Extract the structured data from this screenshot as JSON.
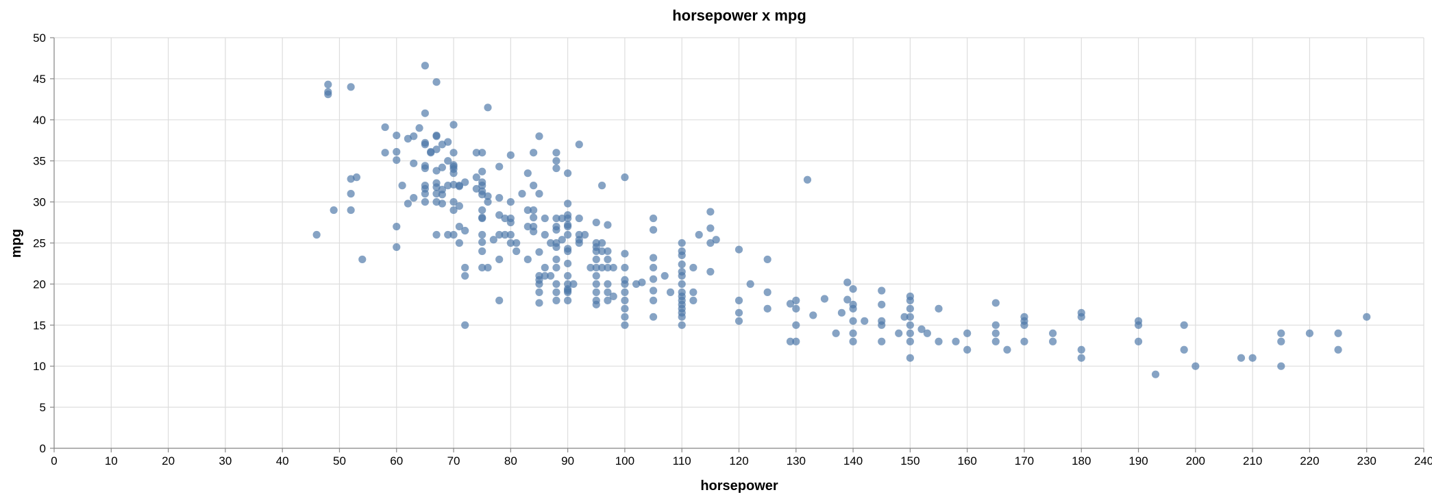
{
  "chart_data": {
    "type": "scatter",
    "title": "horsepower x mpg",
    "xlabel": "horsepower",
    "ylabel": "mpg",
    "xlim": [
      0,
      240
    ],
    "ylim": [
      0,
      50
    ],
    "xticks": [
      0,
      10,
      20,
      30,
      40,
      50,
      60,
      70,
      80,
      90,
      100,
      110,
      120,
      130,
      140,
      150,
      160,
      170,
      180,
      190,
      200,
      210,
      220,
      230,
      240
    ],
    "yticks": [
      0,
      5,
      10,
      15,
      20,
      25,
      30,
      35,
      40,
      45,
      50
    ],
    "grid": true,
    "point_color": "#4c78a8",
    "points": [
      [
        46,
        26
      ],
      [
        48,
        43.1
      ],
      [
        48,
        43.4
      ],
      [
        48,
        44.3
      ],
      [
        49,
        29
      ],
      [
        52,
        44
      ],
      [
        52,
        29
      ],
      [
        52,
        31
      ],
      [
        52,
        32.8
      ],
      [
        53,
        33
      ],
      [
        54,
        23
      ],
      [
        58,
        36
      ],
      [
        58,
        39.1
      ],
      [
        60,
        24.5
      ],
      [
        60,
        27
      ],
      [
        60,
        35.1
      ],
      [
        60,
        36.1
      ],
      [
        60,
        38.1
      ],
      [
        61,
        32
      ],
      [
        62,
        29.8
      ],
      [
        62,
        37.7
      ],
      [
        63,
        30.5
      ],
      [
        63,
        34.7
      ],
      [
        63,
        38
      ],
      [
        64,
        39
      ],
      [
        65,
        46.6
      ],
      [
        65,
        40.8
      ],
      [
        65,
        37.2
      ],
      [
        65,
        37
      ],
      [
        65,
        34.4
      ],
      [
        65,
        34.1
      ],
      [
        65,
        32
      ],
      [
        65,
        31.6
      ],
      [
        65,
        31
      ],
      [
        65,
        30
      ],
      [
        66,
        36.1
      ],
      [
        66,
        36
      ],
      [
        67,
        44.6
      ],
      [
        67,
        38.1
      ],
      [
        67,
        38
      ],
      [
        67,
        36.4
      ],
      [
        67,
        33.8
      ],
      [
        67,
        32.3
      ],
      [
        67,
        31.8
      ],
      [
        67,
        31
      ],
      [
        67,
        30
      ],
      [
        67,
        26
      ],
      [
        68,
        37
      ],
      [
        68,
        34.2
      ],
      [
        68,
        31.5
      ],
      [
        68,
        30.9
      ],
      [
        68,
        29.8
      ],
      [
        69,
        37.3
      ],
      [
        69,
        35
      ],
      [
        69,
        32
      ],
      [
        69,
        26
      ],
      [
        70,
        39.4
      ],
      [
        70,
        36
      ],
      [
        70,
        34.5
      ],
      [
        70,
        34.3
      ],
      [
        70,
        34
      ],
      [
        70,
        33.5
      ],
      [
        70,
        32.1
      ],
      [
        70,
        30
      ],
      [
        70,
        29
      ],
      [
        70,
        26
      ],
      [
        71,
        32
      ],
      [
        71,
        31.9
      ],
      [
        71,
        29.5
      ],
      [
        71,
        27
      ],
      [
        71,
        25
      ],
      [
        72,
        32.4
      ],
      [
        72,
        26.5
      ],
      [
        72,
        22
      ],
      [
        72,
        21
      ],
      [
        72,
        15
      ],
      [
        74,
        36
      ],
      [
        74,
        33
      ],
      [
        74,
        31.6
      ],
      [
        75,
        36
      ],
      [
        75,
        33.7
      ],
      [
        75,
        32.4
      ],
      [
        75,
        32
      ],
      [
        75,
        31.3
      ],
      [
        75,
        30.9
      ],
      [
        75,
        29
      ],
      [
        75,
        28
      ],
      [
        75,
        28.1
      ],
      [
        75,
        26
      ],
      [
        75,
        25.1
      ],
      [
        75,
        24
      ],
      [
        75,
        22
      ],
      [
        76,
        30.7
      ],
      [
        76,
        30
      ],
      [
        76,
        41.5
      ],
      [
        76,
        22
      ],
      [
        77,
        25.4
      ],
      [
        78,
        18
      ],
      [
        78,
        23
      ],
      [
        78,
        26
      ],
      [
        78,
        28.4
      ],
      [
        78,
        30.5
      ],
      [
        78,
        34.3
      ],
      [
        79,
        26
      ],
      [
        79,
        28
      ],
      [
        80,
        35.7
      ],
      [
        80,
        27.5
      ],
      [
        80,
        28
      ],
      [
        80,
        26
      ],
      [
        80,
        25
      ],
      [
        80,
        30
      ],
      [
        81,
        24
      ],
      [
        81,
        25
      ],
      [
        82,
        31
      ],
      [
        83,
        33.5
      ],
      [
        83,
        29
      ],
      [
        83,
        27
      ],
      [
        83,
        23
      ],
      [
        84,
        36
      ],
      [
        84,
        32
      ],
      [
        84,
        28.1
      ],
      [
        84,
        26.4
      ],
      [
        84,
        27
      ],
      [
        84,
        29
      ],
      [
        85,
        38
      ],
      [
        85,
        31
      ],
      [
        85,
        23.9
      ],
      [
        85,
        21
      ],
      [
        85,
        20.5
      ],
      [
        85,
        20
      ],
      [
        85,
        19
      ],
      [
        85,
        17.7
      ],
      [
        86,
        26
      ],
      [
        86,
        28
      ],
      [
        86,
        22
      ],
      [
        86,
        21
      ],
      [
        87,
        21
      ],
      [
        87,
        25
      ],
      [
        88,
        36
      ],
      [
        88,
        35
      ],
      [
        88,
        34.1
      ],
      [
        88,
        28
      ],
      [
        88,
        27
      ],
      [
        88,
        26.6
      ],
      [
        88,
        25
      ],
      [
        88,
        24.5
      ],
      [
        88,
        23
      ],
      [
        88,
        22
      ],
      [
        88,
        20
      ],
      [
        88,
        19
      ],
      [
        88,
        18
      ],
      [
        89,
        25.4
      ],
      [
        89,
        28
      ],
      [
        90,
        33.5
      ],
      [
        90,
        29.8
      ],
      [
        90,
        28.4
      ],
      [
        90,
        28
      ],
      [
        90,
        27.2
      ],
      [
        90,
        27
      ],
      [
        90,
        26
      ],
      [
        90,
        24.3
      ],
      [
        90,
        24
      ],
      [
        90,
        22.5
      ],
      [
        90,
        21
      ],
      [
        90,
        20
      ],
      [
        90,
        19.4
      ],
      [
        90,
        19.2
      ],
      [
        90,
        19
      ],
      [
        90,
        18
      ],
      [
        91,
        20
      ],
      [
        92,
        37
      ],
      [
        92,
        28
      ],
      [
        92,
        26
      ],
      [
        92,
        25.4
      ],
      [
        92,
        25
      ],
      [
        93,
        26
      ],
      [
        94,
        22
      ],
      [
        95,
        27.5
      ],
      [
        95,
        25
      ],
      [
        95,
        24.5
      ],
      [
        95,
        24
      ],
      [
        95,
        23
      ],
      [
        95,
        22
      ],
      [
        95,
        21
      ],
      [
        95,
        20
      ],
      [
        95,
        19
      ],
      [
        95,
        18
      ],
      [
        95,
        17.5
      ],
      [
        96,
        32
      ],
      [
        96,
        25
      ],
      [
        96,
        24
      ],
      [
        96,
        22
      ],
      [
        97,
        27.2
      ],
      [
        97,
        24
      ],
      [
        97,
        23
      ],
      [
        97,
        22
      ],
      [
        97,
        20
      ],
      [
        97,
        19
      ],
      [
        97,
        18
      ],
      [
        98,
        22
      ],
      [
        98,
        18.5
      ],
      [
        100,
        33
      ],
      [
        100,
        23.7
      ],
      [
        100,
        22
      ],
      [
        100,
        20.5
      ],
      [
        100,
        20
      ],
      [
        100,
        19
      ],
      [
        100,
        18
      ],
      [
        100,
        17
      ],
      [
        100,
        16
      ],
      [
        100,
        15
      ],
      [
        102,
        20
      ],
      [
        103,
        20.2
      ],
      [
        105,
        28
      ],
      [
        105,
        26.6
      ],
      [
        105,
        23.2
      ],
      [
        105,
        22
      ],
      [
        105,
        20.6
      ],
      [
        105,
        19.2
      ],
      [
        105,
        18
      ],
      [
        105,
        16
      ],
      [
        107,
        21
      ],
      [
        108,
        19
      ],
      [
        110,
        25
      ],
      [
        110,
        24
      ],
      [
        110,
        23.5
      ],
      [
        110,
        22.4
      ],
      [
        110,
        21.5
      ],
      [
        110,
        21
      ],
      [
        110,
        20
      ],
      [
        110,
        19
      ],
      [
        110,
        18.5
      ],
      [
        110,
        18
      ],
      [
        110,
        17.5
      ],
      [
        110,
        17
      ],
      [
        110,
        16.5
      ],
      [
        110,
        16
      ],
      [
        110,
        15
      ],
      [
        112,
        22
      ],
      [
        112,
        19
      ],
      [
        112,
        18
      ],
      [
        113,
        26
      ],
      [
        115,
        28.8
      ],
      [
        115,
        26.8
      ],
      [
        115,
        25
      ],
      [
        115,
        21.5
      ],
      [
        116,
        25.4
      ],
      [
        120,
        24.2
      ],
      [
        120,
        18
      ],
      [
        120,
        16.5
      ],
      [
        120,
        15.5
      ],
      [
        122,
        20
      ],
      [
        125,
        23
      ],
      [
        125,
        19
      ],
      [
        125,
        17
      ],
      [
        129,
        17.6
      ],
      [
        129,
        13
      ],
      [
        130,
        18
      ],
      [
        130,
        17
      ],
      [
        130,
        15
      ],
      [
        130,
        13
      ],
      [
        132,
        32.7
      ],
      [
        133,
        16.2
      ],
      [
        135,
        18.2
      ],
      [
        137,
        14
      ],
      [
        138,
        16.5
      ],
      [
        139,
        20.2
      ],
      [
        139,
        18.1
      ],
      [
        140,
        19.4
      ],
      [
        140,
        17.5
      ],
      [
        140,
        17
      ],
      [
        140,
        15.5
      ],
      [
        140,
        14
      ],
      [
        140,
        13
      ],
      [
        142,
        15.5
      ],
      [
        145,
        19.2
      ],
      [
        145,
        17.5
      ],
      [
        145,
        15.5
      ],
      [
        145,
        15
      ],
      [
        145,
        13
      ],
      [
        148,
        14
      ],
      [
        149,
        16
      ],
      [
        150,
        18.5
      ],
      [
        150,
        18
      ],
      [
        150,
        17
      ],
      [
        150,
        16
      ],
      [
        150,
        15
      ],
      [
        150,
        14
      ],
      [
        150,
        13
      ],
      [
        150,
        11
      ],
      [
        152,
        14.5
      ],
      [
        153,
        14
      ],
      [
        155,
        17
      ],
      [
        155,
        13
      ],
      [
        158,
        13
      ],
      [
        160,
        14
      ],
      [
        160,
        12
      ],
      [
        165,
        17.7
      ],
      [
        165,
        15
      ],
      [
        165,
        14
      ],
      [
        165,
        13
      ],
      [
        167,
        12
      ],
      [
        170,
        16
      ],
      [
        170,
        15.5
      ],
      [
        170,
        15
      ],
      [
        170,
        13
      ],
      [
        175,
        14
      ],
      [
        175,
        13
      ],
      [
        180,
        16.5
      ],
      [
        180,
        16
      ],
      [
        180,
        12
      ],
      [
        180,
        11
      ],
      [
        190,
        15.5
      ],
      [
        190,
        15
      ],
      [
        190,
        13
      ],
      [
        193,
        9
      ],
      [
        198,
        15
      ],
      [
        198,
        12
      ],
      [
        200,
        10
      ],
      [
        208,
        11
      ],
      [
        210,
        11
      ],
      [
        215,
        14
      ],
      [
        215,
        13
      ],
      [
        215,
        10
      ],
      [
        220,
        14
      ],
      [
        225,
        14
      ],
      [
        225,
        12
      ],
      [
        230,
        16
      ]
    ]
  }
}
